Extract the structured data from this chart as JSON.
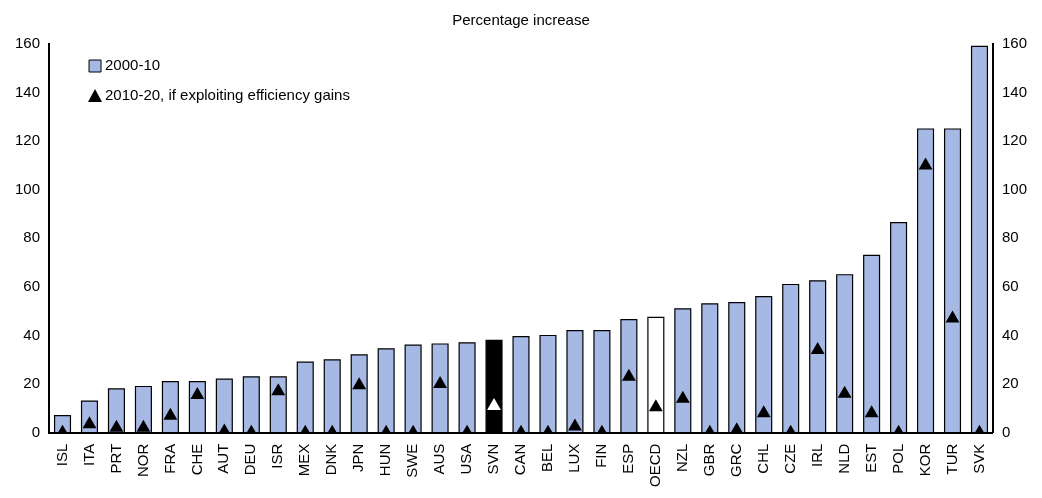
{
  "chart_data": {
    "type": "bar",
    "title": "Percentage increase",
    "categories": [
      "ISL",
      "ITA",
      "PRT",
      "NOR",
      "FRA",
      "CHE",
      "AUT",
      "DEU",
      "ISR",
      "MEX",
      "DNK",
      "JPN",
      "HUN",
      "SWE",
      "AUS",
      "USA",
      "SVN",
      "CAN",
      "BEL",
      "LUX",
      "FIN",
      "ESP",
      "OECD",
      "NZL",
      "GBR",
      "GRC",
      "CHL",
      "CZE",
      "IRL",
      "NLD",
      "EST",
      "POL",
      "KOR",
      "TUR",
      "SVK"
    ],
    "series": [
      {
        "name": "2000-10",
        "type": "bar",
        "color": "#a6b8e4",
        "colors": [
          "#a6b8e4",
          "#a6b8e4",
          "#a6b8e4",
          "#a6b8e4",
          "#a6b8e4",
          "#a6b8e4",
          "#a6b8e4",
          "#a6b8e4",
          "#a6b8e4",
          "#a6b8e4",
          "#a6b8e4",
          "#a6b8e4",
          "#a6b8e4",
          "#a6b8e4",
          "#a6b8e4",
          "#a6b8e4",
          "#000000",
          "#a6b8e4",
          "#a6b8e4",
          "#a6b8e4",
          "#a6b8e4",
          "#a6b8e4",
          "#ffffff",
          "#a6b8e4",
          "#a6b8e4",
          "#a6b8e4",
          "#a6b8e4",
          "#a6b8e4",
          "#a6b8e4",
          "#a6b8e4",
          "#a6b8e4",
          "#a6b8e4",
          "#a6b8e4",
          "#a6b8e4",
          "#a6b8e4"
        ],
        "values": [
          7,
          13,
          18,
          19,
          21,
          21,
          22,
          23,
          23,
          29,
          30,
          32,
          34.5,
          36,
          36.5,
          37,
          38,
          39.5,
          40,
          42,
          42,
          46.5,
          47.5,
          51,
          53,
          53.5,
          56,
          61,
          62.5,
          65,
          73,
          86.5,
          125,
          125,
          159
        ]
      },
      {
        "name": "2010-20, if exploiting efficiency gains",
        "type": "scatter",
        "marker": "triangle",
        "color": "#000000",
        "colors": [
          "#000000",
          "#000000",
          "#000000",
          "#000000",
          "#000000",
          "#000000",
          "#000000",
          "#000000",
          "#000000",
          "#000000",
          "#000000",
          "#000000",
          "#000000",
          "#000000",
          "#000000",
          "#000000",
          "#ffffff",
          "#000000",
          "#000000",
          "#000000",
          "#000000",
          "#000000",
          "#000000",
          "#000000",
          "#000000",
          "#000000",
          "#000000",
          "#000000",
          "#000000",
          "#000000",
          "#000000",
          "#000000",
          "#000000",
          "#000000",
          "#000000"
        ],
        "values": [
          0,
          3.5,
          2,
          2,
          7,
          15.5,
          0.5,
          0,
          17,
          0,
          0,
          19.5,
          0,
          0,
          20,
          0,
          11,
          0,
          0,
          2.5,
          0,
          23,
          10.5,
          14,
          0,
          1,
          8,
          0,
          34,
          16,
          8,
          0,
          110,
          47,
          0
        ]
      }
    ],
    "ylim": [
      0,
      160
    ],
    "yticks": [
      0,
      20,
      40,
      60,
      80,
      100,
      120,
      140,
      160
    ],
    "y2lim": [
      0,
      160
    ],
    "y2ticks": [
      0,
      20,
      40,
      60,
      80,
      100,
      120,
      140,
      160
    ],
    "grid": false,
    "legend": "top left"
  }
}
